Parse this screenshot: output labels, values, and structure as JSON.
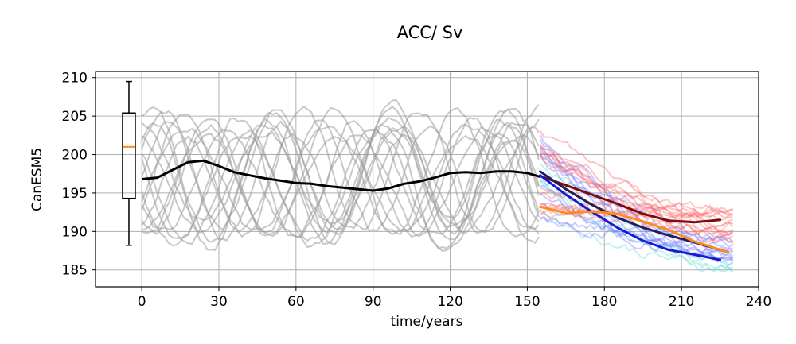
{
  "chart_data": {
    "type": "line",
    "title": "ACC/ Sv",
    "xlabel": "time/years",
    "ylabel": "CanESM5",
    "xlim": [
      -18,
      240
    ],
    "ylim": [
      182.8,
      210.8
    ],
    "xticks": [
      0,
      30,
      60,
      90,
      120,
      150,
      180,
      210,
      240
    ],
    "yticks": [
      185,
      190,
      195,
      200,
      205,
      210
    ],
    "grid": true,
    "colors": {
      "ensemble": "#9a9a9a",
      "historical_mean": "#000000",
      "dark_red": "#7a0c0c",
      "blue": "#1a1ad6",
      "orange": "#ff8c1a",
      "navy": "#1f1f5c",
      "red_members": "#ff5a5a",
      "blue_members": "#6a6aff",
      "cyan_members": "#55d6d6",
      "median": "#ff8c1a"
    },
    "boxplot": {
      "x": -5,
      "whisker_low": 188.2,
      "q1": 194.3,
      "median": 201,
      "q3": 205.4,
      "whisker_high": 209.5
    },
    "historical_mean": {
      "x": [
        0,
        6,
        12,
        18,
        24,
        30,
        36,
        42,
        48,
        54,
        60,
        66,
        72,
        78,
        84,
        90,
        96,
        102,
        108,
        114,
        120,
        126,
        132,
        138,
        144,
        150,
        155
      ],
      "y": [
        196.8,
        197,
        198,
        199,
        199.2,
        198.5,
        197.7,
        197.3,
        196.9,
        196.6,
        196.3,
        196.2,
        195.9,
        195.7,
        195.5,
        195.3,
        195.6,
        196.2,
        196.5,
        197,
        197.6,
        197.7,
        197.6,
        197.8,
        197.8,
        197.6,
        197.1
      ]
    },
    "scenario_means": [
      {
        "name": "dark-red",
        "x": [
          155,
          165,
          175,
          185,
          195,
          205,
          215,
          225
        ],
        "y": [
          197.2,
          196,
          194.8,
          193.6,
          192.3,
          191.4,
          191.2,
          191.5
        ]
      },
      {
        "name": "navy",
        "x": [
          155,
          165,
          175,
          185,
          195,
          205,
          215,
          228
        ],
        "y": [
          197.8,
          195.5,
          193.5,
          191.8,
          190.5,
          189.5,
          188.6,
          187.3
        ]
      },
      {
        "name": "blue",
        "x": [
          155,
          165,
          175,
          185,
          195,
          205,
          215,
          225
        ],
        "y": [
          197.3,
          194.8,
          192.6,
          190.5,
          188.8,
          187.6,
          187,
          186.3
        ]
      },
      {
        "name": "orange",
        "x": [
          155,
          165,
          175,
          185,
          195,
          205,
          215,
          228
        ],
        "y": [
          193.2,
          192.4,
          192.6,
          192.3,
          191.3,
          190.2,
          188.7,
          187.3
        ]
      }
    ],
    "ensemble_members": [
      {
        "amplitude": 7.5,
        "period": 44,
        "phase": 0.3,
        "offset": 198.5
      },
      {
        "amplitude": 8.5,
        "period": 47,
        "phase": 1.1,
        "offset": 197.8
      },
      {
        "amplitude": 6.5,
        "period": 52,
        "phase": 2.0,
        "offset": 196.8
      },
      {
        "amplitude": 7.8,
        "period": 46,
        "phase": 2.8,
        "offset": 197
      },
      {
        "amplitude": 6.8,
        "period": 50,
        "phase": 3.6,
        "offset": 196.5
      },
      {
        "amplitude": 8.2,
        "period": 48,
        "phase": 4.4,
        "offset": 197.5
      },
      {
        "amplitude": 6,
        "period": 42,
        "phase": 5.2,
        "offset": 196.2
      },
      {
        "amplitude": 7.2,
        "period": 55,
        "phase": 5.9,
        "offset": 196.8
      },
      {
        "amplitude": 8,
        "period": 45,
        "phase": 0.9,
        "offset": 196
      },
      {
        "amplitude": 6.5,
        "period": 49,
        "phase": 1.7,
        "offset": 197.6
      },
      {
        "amplitude": 7.5,
        "period": 53,
        "phase": 3.2,
        "offset": 195.5
      },
      {
        "amplitude": 7,
        "period": 43,
        "phase": 4.0,
        "offset": 197.2
      },
      {
        "amplitude": 6.2,
        "period": 51,
        "phase": 4.8,
        "offset": 196.4
      },
      {
        "amplitude": 7.9,
        "period": 46,
        "phase": 5.6,
        "offset": 197.9
      },
      {
        "amplitude": 6.8,
        "period": 48,
        "phase": 2.4,
        "offset": 195.8
      },
      {
        "amplitude": 7.3,
        "period": 44,
        "phase": 0.1,
        "offset": 196.6
      }
    ],
    "future_member_counts": {
      "red": 14,
      "blue": 12,
      "cyan": 5
    }
  }
}
